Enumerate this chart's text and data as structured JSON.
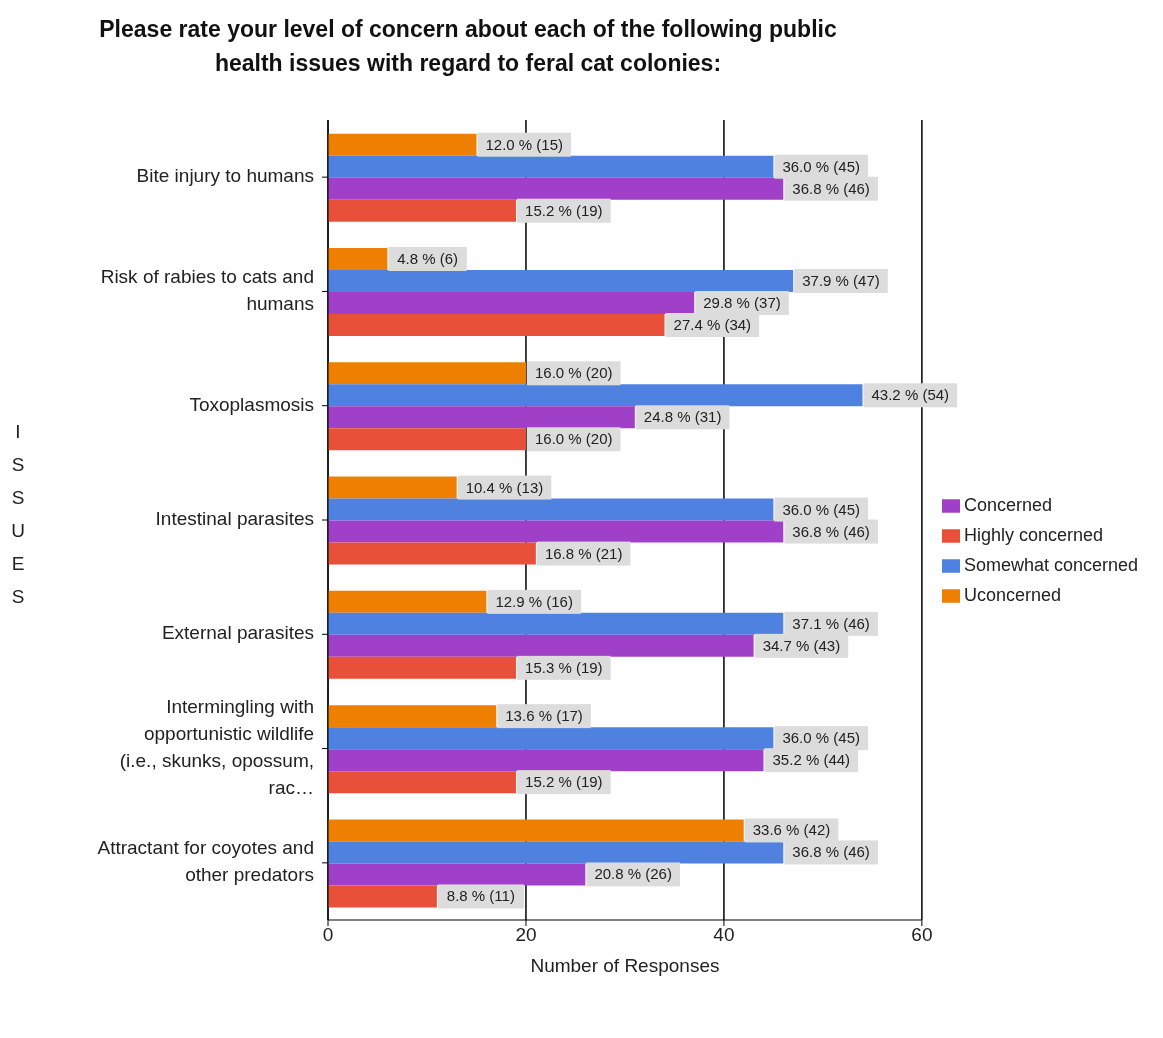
{
  "chart_data": {
    "type": "bar",
    "orientation": "horizontal",
    "title": "Please rate your level of concern about each of the following public health issues with regard to feral cat colonies:",
    "xlabel": "Number of Responses",
    "ylabel": "ISSUES",
    "categories": [
      "Bite injury to humans",
      "Risk of rabies to cats and humans",
      "Toxoplasmosis",
      "Intestinal parasites",
      "External parasites",
      "Intermingling with opportunistic wildlife (i.e., skunks, opossum, rac…",
      "Attractant for coyotes and other predators"
    ],
    "series": [
      {
        "name": "Uconcerned",
        "color": "#ee7f00",
        "values": [
          15,
          6,
          20,
          13,
          16,
          17,
          42
        ],
        "value_labels": [
          "12.0 % (15)",
          "4.8 % (6)",
          "16.0 % (20)",
          "10.4 % (13)",
          "12.9 % (16)",
          "13.6 % (17)",
          "33.6 % (42)"
        ]
      },
      {
        "name": "Somewhat concerned",
        "color": "#4f81e0",
        "values": [
          45,
          47,
          54,
          45,
          46,
          45,
          46
        ],
        "value_labels": [
          "36.0 % (45)",
          "37.9 % (47)",
          "43.2 % (54)",
          "36.0 % (45)",
          "37.1 % (46)",
          "36.0 % (45)",
          "36.8 % (46)"
        ]
      },
      {
        "name": "Concerned",
        "color": "#a040c8",
        "values": [
          46,
          37,
          31,
          46,
          43,
          44,
          26
        ],
        "value_labels": [
          "36.8 % (46)",
          "29.8 % (37)",
          "24.8 % (31)",
          "36.8 % (46)",
          "34.7 % (43)",
          "35.2 % (44)",
          "20.8 % (26)"
        ]
      },
      {
        "name": "Highly concerned",
        "color": "#e8503a",
        "values": [
          19,
          34,
          20,
          21,
          19,
          19,
          11
        ],
        "value_labels": [
          "15.2 % (19)",
          "27.4 % (34)",
          "16.0 % (20)",
          "16.8 % (21)",
          "15.3 % (19)",
          "15.2 % (19)",
          "8.8 % (11)"
        ]
      }
    ],
    "xlim": [
      0,
      60
    ],
    "xticks": [
      0,
      20,
      40,
      60
    ],
    "grid": "x",
    "legend": "right"
  }
}
